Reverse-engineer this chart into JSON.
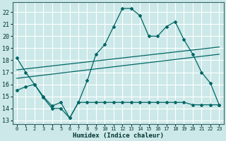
{
  "xlabel": "Humidex (Indice chaleur)",
  "background_color": "#cce8e8",
  "grid_color": "#ffffff",
  "line_color": "#006666",
  "xlim": [
    -0.5,
    23.5
  ],
  "ylim": [
    12.7,
    22.8
  ],
  "yticks": [
    13,
    14,
    15,
    16,
    17,
    18,
    19,
    20,
    21,
    22
  ],
  "xticks": [
    0,
    1,
    2,
    3,
    4,
    5,
    6,
    7,
    8,
    9,
    10,
    11,
    12,
    13,
    14,
    15,
    16,
    17,
    18,
    19,
    20,
    21,
    22,
    23
  ],
  "line1_x": [
    0,
    1,
    2,
    3,
    4,
    5,
    6,
    7,
    8,
    9,
    10,
    11,
    12,
    13,
    14,
    15,
    16,
    17,
    18,
    19,
    20,
    21,
    22,
    23
  ],
  "line1_y": [
    18.2,
    17.0,
    16.0,
    14.9,
    14.0,
    14.0,
    13.2,
    14.5,
    16.3,
    18.5,
    19.3,
    20.8,
    22.3,
    22.3,
    21.7,
    20.0,
    20.0,
    20.8,
    21.2,
    19.7,
    18.5,
    17.0,
    16.1,
    14.3
  ],
  "line2_x": [
    0,
    1,
    2,
    3,
    4,
    5,
    6,
    7,
    8,
    9,
    10,
    11,
    12,
    13,
    14,
    15,
    16,
    17,
    18,
    19,
    20,
    21,
    22,
    23
  ],
  "line2_y": [
    15.5,
    15.8,
    16.0,
    15.0,
    14.2,
    14.5,
    13.2,
    14.5,
    14.5,
    14.5,
    14.5,
    14.5,
    14.5,
    14.5,
    14.5,
    14.5,
    14.5,
    14.5,
    14.5,
    14.5,
    14.3,
    14.3,
    14.3,
    14.3
  ],
  "line3_x": [
    0,
    23
  ],
  "line3_y": [
    16.5,
    18.5
  ],
  "line4_x": [
    0,
    23
  ],
  "line4_y": [
    17.2,
    19.1
  ]
}
